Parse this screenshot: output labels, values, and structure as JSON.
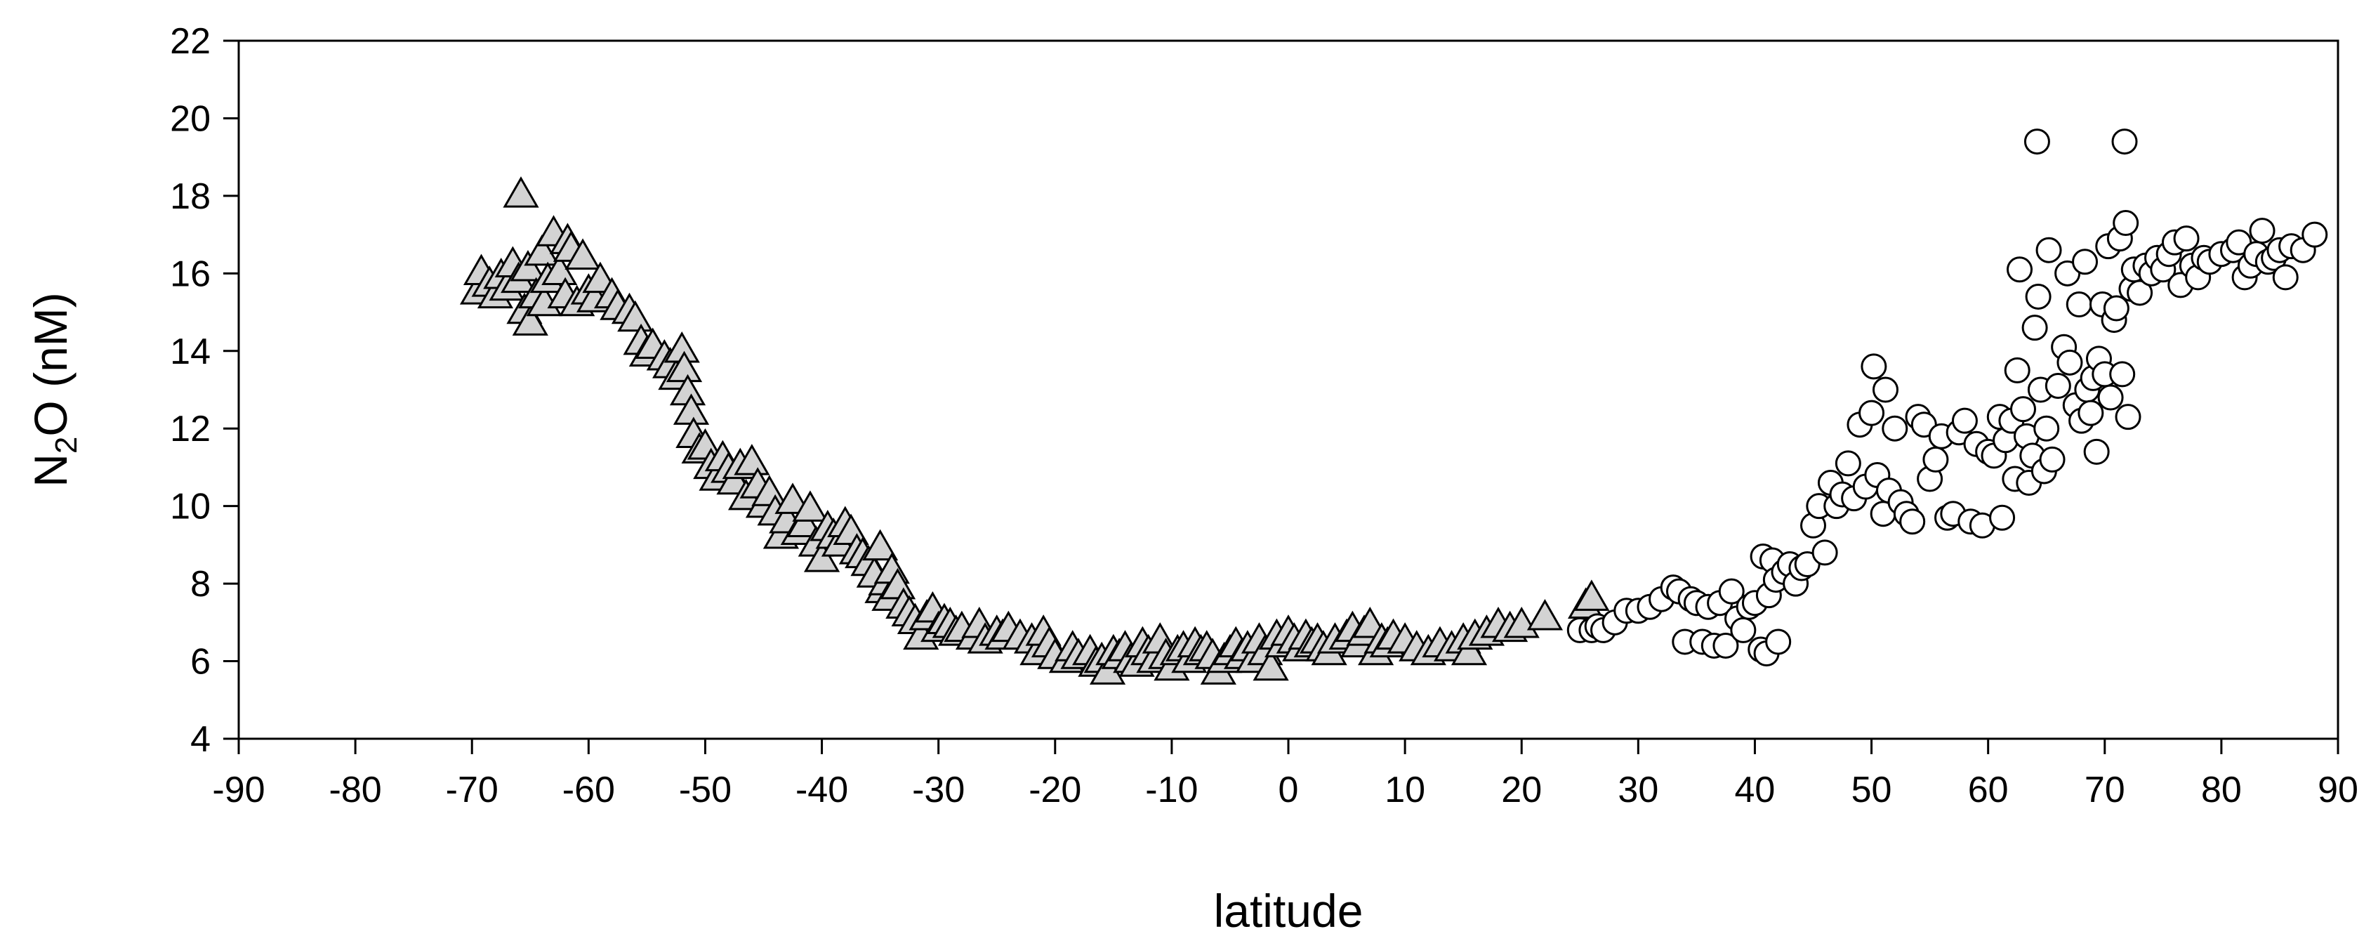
{
  "chart_data": {
    "type": "scatter",
    "title": "",
    "xlabel": "latitude",
    "ylabel": {
      "pre": "N",
      "sub": "2",
      "post": "O (nM)"
    },
    "xlim": [
      -90,
      90
    ],
    "ylim": [
      4,
      22
    ],
    "xticks": [
      -90,
      -80,
      -70,
      -60,
      -50,
      -40,
      -30,
      -20,
      -10,
      0,
      10,
      20,
      30,
      40,
      50,
      60,
      70,
      80,
      90
    ],
    "yticks": [
      4,
      6,
      8,
      10,
      12,
      14,
      16,
      18,
      20,
      22
    ],
    "grid": false,
    "legend": "none",
    "series": [
      {
        "marker": "triangle",
        "fill": "#d3d3d3",
        "stroke": "#000000",
        "points": [
          [
            -69.5,
            15.5
          ],
          [
            -69.2,
            16.0
          ],
          [
            -68.5,
            15.7
          ],
          [
            -68,
            15.4
          ],
          [
            -67.5,
            15.9
          ],
          [
            -67,
            15.6
          ],
          [
            -66.5,
            16.2
          ],
          [
            -66,
            15.8
          ],
          [
            -65.8,
            18.0
          ],
          [
            -65.5,
            15.0
          ],
          [
            -65.2,
            16.1
          ],
          [
            -65,
            14.7
          ],
          [
            -64.5,
            15.4
          ],
          [
            -64,
            16.5
          ],
          [
            -63.8,
            15.2
          ],
          [
            -63.5,
            15.8
          ],
          [
            -63,
            17.0
          ],
          [
            -62.5,
            16.0
          ],
          [
            -62,
            15.4
          ],
          [
            -61.8,
            16.8
          ],
          [
            -61.5,
            16.6
          ],
          [
            -61,
            15.2
          ],
          [
            -60.5,
            16.4
          ],
          [
            -60,
            15.5
          ],
          [
            -59.5,
            15.3
          ],
          [
            -59,
            15.8
          ],
          [
            -58,
            15.4
          ],
          [
            -57.5,
            15.1
          ],
          [
            -56.5,
            15.0
          ],
          [
            -56,
            14.8
          ],
          [
            -55.5,
            14.2
          ],
          [
            -55,
            13.9
          ],
          [
            -54.5,
            14.1
          ],
          [
            -53.5,
            13.8
          ],
          [
            -53,
            13.6
          ],
          [
            -52.5,
            13.3
          ],
          [
            -52,
            14.0
          ],
          [
            -51.8,
            13.5
          ],
          [
            -51.5,
            12.9
          ],
          [
            -51.2,
            12.4
          ],
          [
            -51,
            11.8
          ],
          [
            -50.5,
            11.4
          ],
          [
            -50,
            11.5
          ],
          [
            -49.5,
            11.0
          ],
          [
            -49,
            10.7
          ],
          [
            -48.5,
            11.2
          ],
          [
            -48,
            10.9
          ],
          [
            -47.5,
            10.6
          ],
          [
            -47,
            11.0
          ],
          [
            -46.5,
            10.2
          ],
          [
            -46,
            11.1
          ],
          [
            -45.5,
            10.5
          ],
          [
            -45,
            10.0
          ],
          [
            -44.5,
            10.3
          ],
          [
            -44,
            9.8
          ],
          [
            -43.5,
            9.2
          ],
          [
            -43,
            9.6
          ],
          [
            -42.5,
            10.1
          ],
          [
            -42,
            9.3
          ],
          [
            -41.5,
            9.5
          ],
          [
            -41,
            9.9
          ],
          [
            -40.5,
            9.0
          ],
          [
            -40,
            8.6
          ],
          [
            -39.5,
            9.4
          ],
          [
            -39,
            9.2
          ],
          [
            -38.5,
            9.0
          ],
          [
            -38,
            9.5
          ],
          [
            -37.5,
            9.3
          ],
          [
            -37,
            8.8
          ],
          [
            -36.5,
            8.7
          ],
          [
            -36,
            8.5
          ],
          [
            -35.5,
            8.2
          ],
          [
            -35,
            8.9
          ],
          [
            -34.8,
            7.8
          ],
          [
            -34.5,
            8.0
          ],
          [
            -34.2,
            7.6
          ],
          [
            -34,
            8.3
          ],
          [
            -33.5,
            7.9
          ],
          [
            -33,
            7.4
          ],
          [
            -32.5,
            7.2
          ],
          [
            -32,
            7.0
          ],
          [
            -31.5,
            6.6
          ],
          [
            -31,
            7.1
          ],
          [
            -30.5,
            7.3
          ],
          [
            -30,
            6.8
          ],
          [
            -29.5,
            7.0
          ],
          [
            -29,
            6.9
          ],
          [
            -28.5,
            6.7
          ],
          [
            -28,
            6.8
          ],
          [
            -27,
            6.6
          ],
          [
            -26.5,
            6.9
          ],
          [
            -26,
            6.5
          ],
          [
            -25,
            6.7
          ],
          [
            -24.5,
            6.6
          ],
          [
            -24,
            6.8
          ],
          [
            -23,
            6.6
          ],
          [
            -22,
            6.5
          ],
          [
            -21.5,
            6.2
          ],
          [
            -21,
            6.7
          ],
          [
            -20.5,
            6.4
          ],
          [
            -20,
            6.1
          ],
          [
            -19,
            6.0
          ],
          [
            -18.5,
            6.3
          ],
          [
            -18,
            6.1
          ],
          [
            -17,
            6.2
          ],
          [
            -16.5,
            5.9
          ],
          [
            -16,
            6.0
          ],
          [
            -15.5,
            5.7
          ],
          [
            -15,
            6.2
          ],
          [
            -14.5,
            6.1
          ],
          [
            -14,
            6.3
          ],
          [
            -13.5,
            6.0
          ],
          [
            -13,
            5.9
          ],
          [
            -12.5,
            6.4
          ],
          [
            -12,
            6.2
          ],
          [
            -11.5,
            6.0
          ],
          [
            -11,
            6.5
          ],
          [
            -10.5,
            6.1
          ],
          [
            -10,
            5.8
          ],
          [
            -9.5,
            6.2
          ],
          [
            -9,
            6.3
          ],
          [
            -8.5,
            6.0
          ],
          [
            -8,
            6.4
          ],
          [
            -7.5,
            6.2
          ],
          [
            -7,
            6.3
          ],
          [
            -6.5,
            6.1
          ],
          [
            -6,
            5.7
          ],
          [
            -5.5,
            6.0
          ],
          [
            -5,
            6.2
          ],
          [
            -4.5,
            6.4
          ],
          [
            -4,
            6.1
          ],
          [
            -3.5,
            6.3
          ],
          [
            -3,
            6.0
          ],
          [
            -2.5,
            6.5
          ],
          [
            -2,
            6.2
          ],
          [
            -1.5,
            5.8
          ],
          [
            -1,
            6.6
          ],
          [
            -0.5,
            6.4
          ],
          [
            0,
            6.7
          ],
          [
            0.5,
            6.5
          ],
          [
            1,
            6.3
          ],
          [
            1.5,
            6.6
          ],
          [
            2,
            6.4
          ],
          [
            2.5,
            6.5
          ],
          [
            3,
            6.3
          ],
          [
            3.5,
            6.2
          ],
          [
            4,
            6.5
          ],
          [
            5,
            6.6
          ],
          [
            5.5,
            6.8
          ],
          [
            6,
            6.4
          ],
          [
            6.5,
            6.7
          ],
          [
            7,
            6.9
          ],
          [
            7.5,
            6.2
          ],
          [
            8,
            6.5
          ],
          [
            8.5,
            6.4
          ],
          [
            9,
            6.6
          ],
          [
            10,
            6.5
          ],
          [
            11,
            6.3
          ],
          [
            12,
            6.2
          ],
          [
            13,
            6.4
          ],
          [
            14,
            6.3
          ],
          [
            15,
            6.5
          ],
          [
            15.5,
            6.2
          ],
          [
            16,
            6.6
          ],
          [
            17,
            6.7
          ],
          [
            18,
            6.9
          ],
          [
            19,
            6.8
          ],
          [
            20,
            6.9
          ],
          [
            22,
            7.1
          ],
          [
            25.5,
            7.4
          ],
          [
            26,
            7.6
          ]
        ]
      },
      {
        "marker": "circle",
        "fill": "#ffffff",
        "stroke": "#000000",
        "points": [
          [
            25,
            6.8
          ],
          [
            26,
            6.8
          ],
          [
            26.5,
            6.9
          ],
          [
            27,
            6.8
          ],
          [
            28,
            7.0
          ],
          [
            29,
            7.3
          ],
          [
            30,
            7.3
          ],
          [
            31,
            7.4
          ],
          [
            32,
            7.6
          ],
          [
            33,
            7.9
          ],
          [
            33.5,
            7.8
          ],
          [
            34,
            6.5
          ],
          [
            34.5,
            7.6
          ],
          [
            35,
            7.5
          ],
          [
            35.5,
            6.5
          ],
          [
            36,
            7.4
          ],
          [
            36.5,
            6.4
          ],
          [
            37,
            7.5
          ],
          [
            37.5,
            6.4
          ],
          [
            38,
            7.8
          ],
          [
            38.5,
            7.1
          ],
          [
            39,
            6.8
          ],
          [
            39.5,
            7.4
          ],
          [
            40,
            7.5
          ],
          [
            40.5,
            6.3
          ],
          [
            40.7,
            8.7
          ],
          [
            41,
            6.2
          ],
          [
            41.2,
            7.7
          ],
          [
            41.5,
            8.6
          ],
          [
            41.8,
            8.1
          ],
          [
            42,
            6.5
          ],
          [
            42.5,
            8.3
          ],
          [
            43,
            8.5
          ],
          [
            43.5,
            8.0
          ],
          [
            44,
            8.4
          ],
          [
            44.5,
            8.5
          ],
          [
            45,
            9.5
          ],
          [
            45.5,
            10.0
          ],
          [
            46,
            8.8
          ],
          [
            46.5,
            10.6
          ],
          [
            47,
            10.0
          ],
          [
            47.5,
            10.3
          ],
          [
            48,
            11.1
          ],
          [
            48.5,
            10.2
          ],
          [
            49,
            12.1
          ],
          [
            49.5,
            10.5
          ],
          [
            50,
            12.4
          ],
          [
            50.2,
            13.6
          ],
          [
            50.5,
            10.8
          ],
          [
            51,
            9.8
          ],
          [
            51.2,
            13.0
          ],
          [
            51.5,
            10.4
          ],
          [
            52,
            12.0
          ],
          [
            52.5,
            10.1
          ],
          [
            53,
            9.8
          ],
          [
            53.5,
            9.6
          ],
          [
            54,
            12.3
          ],
          [
            54.5,
            12.1
          ],
          [
            55,
            10.7
          ],
          [
            55.5,
            11.2
          ],
          [
            56,
            11.8
          ],
          [
            56.5,
            9.7
          ],
          [
            57,
            9.8
          ],
          [
            57.5,
            11.9
          ],
          [
            58,
            12.2
          ],
          [
            58.5,
            9.6
          ],
          [
            59,
            11.6
          ],
          [
            59.5,
            9.5
          ],
          [
            60,
            11.4
          ],
          [
            60.5,
            11.3
          ],
          [
            61,
            12.3
          ],
          [
            61.2,
            9.7
          ],
          [
            61.5,
            11.7
          ],
          [
            62,
            12.2
          ],
          [
            62.3,
            10.7
          ],
          [
            62.5,
            13.5
          ],
          [
            62.7,
            16.1
          ],
          [
            63,
            12.5
          ],
          [
            63.3,
            11.8
          ],
          [
            63.5,
            10.6
          ],
          [
            63.8,
            11.3
          ],
          [
            64,
            14.6
          ],
          [
            64.2,
            19.4
          ],
          [
            64.3,
            15.4
          ],
          [
            64.5,
            13.0
          ],
          [
            64.8,
            10.9
          ],
          [
            65,
            12.0
          ],
          [
            65.2,
            16.6
          ],
          [
            65.5,
            11.2
          ],
          [
            66,
            13.1
          ],
          [
            66.5,
            14.1
          ],
          [
            66.8,
            16.0
          ],
          [
            67,
            13.7
          ],
          [
            67.5,
            12.6
          ],
          [
            67.8,
            15.2
          ],
          [
            68,
            12.2
          ],
          [
            68.3,
            16.3
          ],
          [
            68.5,
            13.0
          ],
          [
            68.8,
            12.4
          ],
          [
            69,
            13.3
          ],
          [
            69.3,
            11.4
          ],
          [
            69.5,
            13.8
          ],
          [
            69.8,
            15.2
          ],
          [
            70,
            13.4
          ],
          [
            70.3,
            16.7
          ],
          [
            70.5,
            12.8
          ],
          [
            70.8,
            14.8
          ],
          [
            71,
            15.1
          ],
          [
            71.3,
            16.9
          ],
          [
            71.5,
            13.4
          ],
          [
            71.7,
            19.4
          ],
          [
            71.8,
            17.3
          ],
          [
            72,
            12.3
          ],
          [
            72.3,
            15.6
          ],
          [
            72.5,
            16.1
          ],
          [
            73,
            15.5
          ],
          [
            73.5,
            16.2
          ],
          [
            74,
            16.0
          ],
          [
            74.5,
            16.4
          ],
          [
            75,
            16.1
          ],
          [
            75.5,
            16.5
          ],
          [
            76,
            16.8
          ],
          [
            76.5,
            15.7
          ],
          [
            77,
            16.9
          ],
          [
            77.5,
            16.2
          ],
          [
            78,
            15.9
          ],
          [
            78.5,
            16.4
          ],
          [
            79,
            16.3
          ],
          [
            80,
            16.5
          ],
          [
            81,
            16.6
          ],
          [
            81.5,
            16.8
          ],
          [
            82,
            15.9
          ],
          [
            82.5,
            16.2
          ],
          [
            83,
            16.5
          ],
          [
            83.5,
            17.1
          ],
          [
            84,
            16.3
          ],
          [
            84.5,
            16.4
          ],
          [
            85,
            16.6
          ],
          [
            85.5,
            15.9
          ],
          [
            86,
            16.7
          ],
          [
            87,
            16.6
          ],
          [
            88,
            17.0
          ]
        ]
      }
    ]
  }
}
